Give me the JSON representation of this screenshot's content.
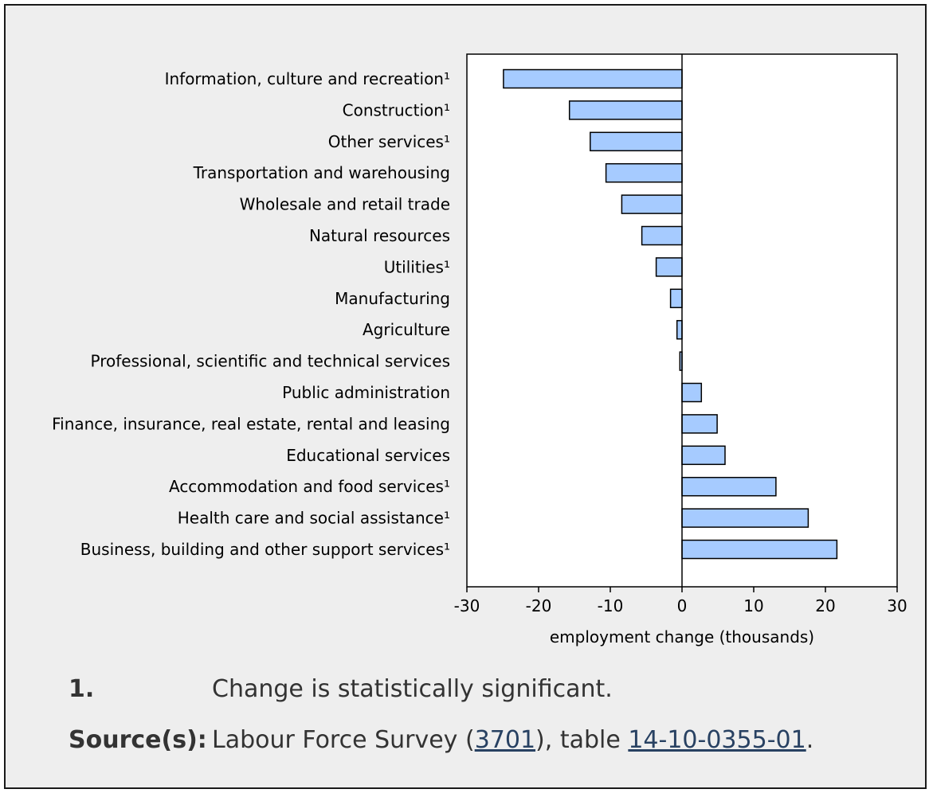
{
  "chart_data": {
    "type": "bar",
    "orientation": "horizontal",
    "categories": [
      "Information, culture and recreation¹",
      "Construction¹",
      "Other services¹",
      "Transportation and warehousing",
      "Wholesale and retail trade",
      "Natural resources",
      "Utilities¹",
      "Manufacturing",
      "Agriculture",
      "Professional, scientific and technical services",
      "Public administration",
      "Finance, insurance, real estate, rental and leasing",
      "Educational services",
      "Accommodation and food services¹",
      "Health care and social assistance¹",
      "Business, building and other support services¹"
    ],
    "values": [
      -24.9,
      -15.7,
      -12.8,
      -10.6,
      -8.4,
      -5.6,
      -3.6,
      -1.6,
      -0.7,
      -0.3,
      2.7,
      4.9,
      6.0,
      13.1,
      17.6,
      21.6
    ],
    "xlabel": "employment change (thousands)",
    "xlim": [
      -30,
      30
    ],
    "xticks": [
      "-30",
      "-20",
      "-10",
      "0",
      "10",
      "20",
      "30"
    ],
    "grid": false,
    "bar_color": "#a6cbff",
    "bar_edge_color": "#000000"
  },
  "notes": {
    "footnote_key": "1.",
    "footnote_text": "Change is statistically significant.",
    "source_key": "Source(s):",
    "source_prefix": "Labour Force Survey (",
    "source_link1": "3701",
    "source_middle": "), table ",
    "source_link2": "14-10-0355-01",
    "source_suffix": "."
  }
}
